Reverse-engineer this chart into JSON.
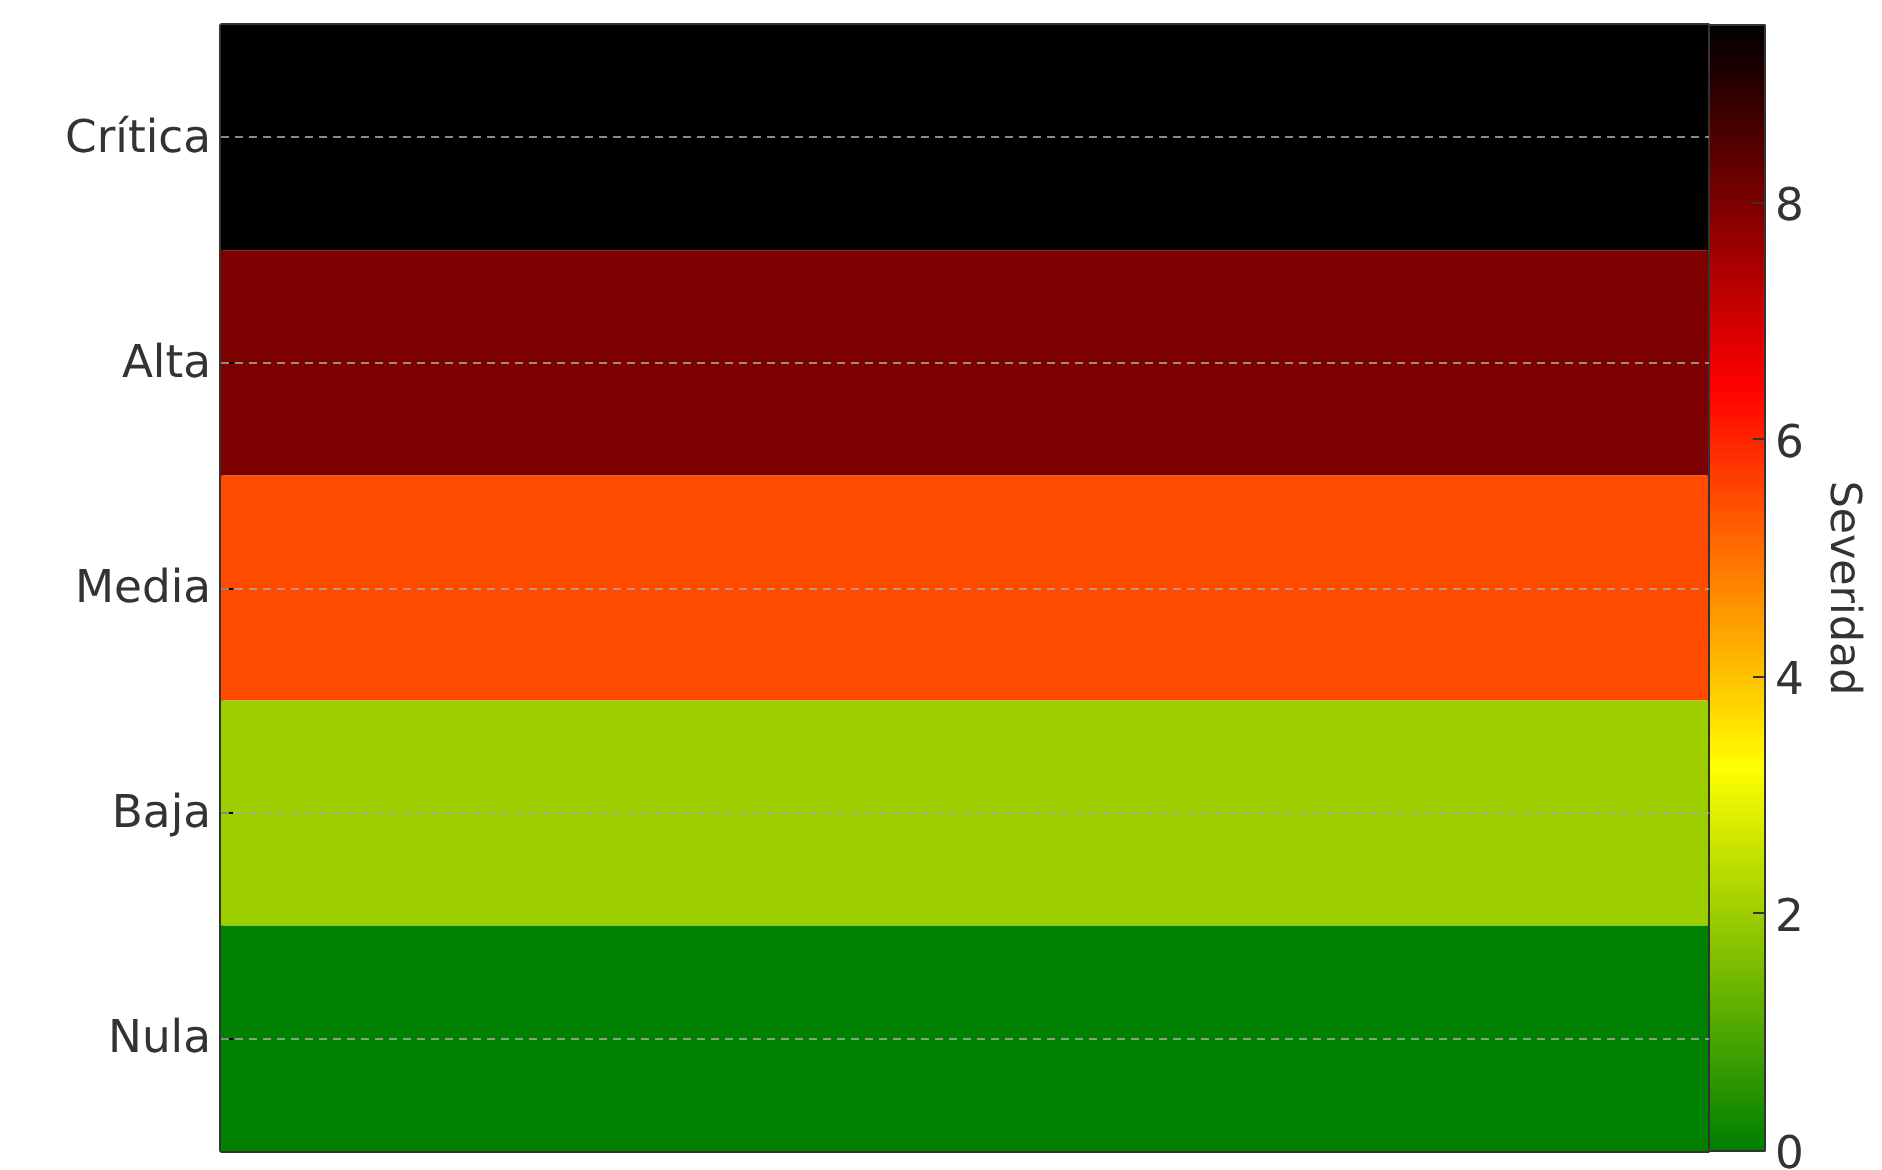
{
  "chart_data": {
    "type": "heatmap",
    "clabel": "Severidad",
    "categories": [
      null
    ],
    "y_categories": [
      "Crítica",
      "Alta",
      "Media",
      "Baja",
      "Nula"
    ],
    "cells": [
      [
        9.5
      ],
      [
        8
      ],
      [
        5.5
      ],
      [
        2
      ],
      [
        0
      ]
    ],
    "clim": [
      0,
      9.5
    ],
    "cticks": [
      0,
      2,
      4,
      6,
      8
    ],
    "grid": "y"
  }
}
